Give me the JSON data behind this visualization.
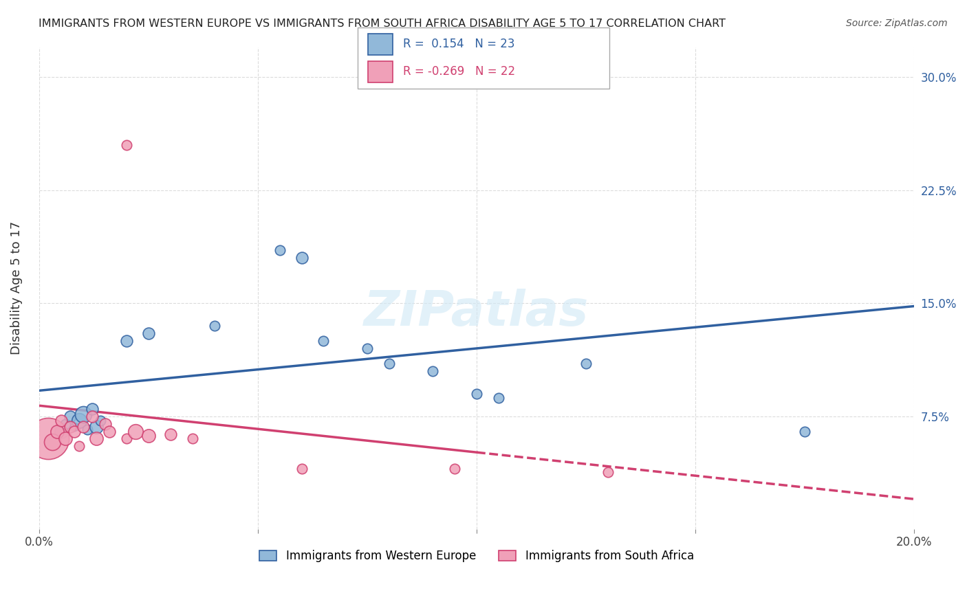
{
  "title": "IMMIGRANTS FROM WESTERN EUROPE VS IMMIGRANTS FROM SOUTH AFRICA DISABILITY AGE 5 TO 17 CORRELATION CHART",
  "source": "Source: ZipAtlas.com",
  "ylabel": "Disability Age 5 to 17",
  "x_min": 0.0,
  "x_max": 0.2,
  "y_min": 0.0,
  "y_max": 0.32,
  "y_ticks": [
    0.075,
    0.15,
    0.225,
    0.3
  ],
  "y_tick_labels": [
    "7.5%",
    "15.0%",
    "22.5%",
    "30.0%"
  ],
  "blue_R": 0.154,
  "blue_N": 23,
  "pink_R": -0.269,
  "pink_N": 22,
  "blue_color": "#91b8d9",
  "pink_color": "#f0a0b8",
  "blue_line_color": "#3060a0",
  "pink_line_color": "#d04070",
  "watermark": "ZIPatlas",
  "legend_label_blue": "Immigrants from Western Europe",
  "legend_label_pink": "Immigrants from South Africa",
  "blue_points": [
    [
      0.005,
      0.065,
      8
    ],
    [
      0.006,
      0.07,
      6
    ],
    [
      0.007,
      0.075,
      7
    ],
    [
      0.008,
      0.068,
      5
    ],
    [
      0.009,
      0.072,
      9
    ],
    [
      0.01,
      0.076,
      10
    ],
    [
      0.011,
      0.066,
      6
    ],
    [
      0.012,
      0.08,
      7
    ],
    [
      0.013,
      0.068,
      8
    ],
    [
      0.014,
      0.072,
      6
    ],
    [
      0.02,
      0.125,
      7
    ],
    [
      0.025,
      0.13,
      7
    ],
    [
      0.04,
      0.135,
      6
    ],
    [
      0.055,
      0.185,
      6
    ],
    [
      0.06,
      0.18,
      7
    ],
    [
      0.065,
      0.125,
      6
    ],
    [
      0.075,
      0.12,
      6
    ],
    [
      0.08,
      0.11,
      6
    ],
    [
      0.09,
      0.105,
      6
    ],
    [
      0.1,
      0.09,
      6
    ],
    [
      0.105,
      0.087,
      6
    ],
    [
      0.125,
      0.11,
      6
    ],
    [
      0.175,
      0.065,
      6
    ]
  ],
  "pink_points": [
    [
      0.002,
      0.06,
      25
    ],
    [
      0.003,
      0.058,
      10
    ],
    [
      0.004,
      0.065,
      8
    ],
    [
      0.005,
      0.072,
      7
    ],
    [
      0.006,
      0.06,
      8
    ],
    [
      0.007,
      0.068,
      7
    ],
    [
      0.008,
      0.065,
      7
    ],
    [
      0.009,
      0.055,
      6
    ],
    [
      0.01,
      0.068,
      7
    ],
    [
      0.012,
      0.075,
      7
    ],
    [
      0.013,
      0.06,
      8
    ],
    [
      0.015,
      0.07,
      7
    ],
    [
      0.016,
      0.065,
      7
    ],
    [
      0.02,
      0.06,
      6
    ],
    [
      0.022,
      0.065,
      9
    ],
    [
      0.025,
      0.062,
      8
    ],
    [
      0.03,
      0.063,
      7
    ],
    [
      0.035,
      0.06,
      6
    ],
    [
      0.02,
      0.255,
      6
    ],
    [
      0.06,
      0.04,
      6
    ],
    [
      0.095,
      0.04,
      6
    ],
    [
      0.13,
      0.038,
      6
    ]
  ],
  "blue_trend_x": [
    0.0,
    0.2
  ],
  "blue_trend_y": [
    0.092,
    0.148
  ],
  "pink_trend_x": [
    0.0,
    0.2
  ],
  "pink_trend_y": [
    0.082,
    0.02
  ],
  "pink_trend_dashed_start": 0.1
}
